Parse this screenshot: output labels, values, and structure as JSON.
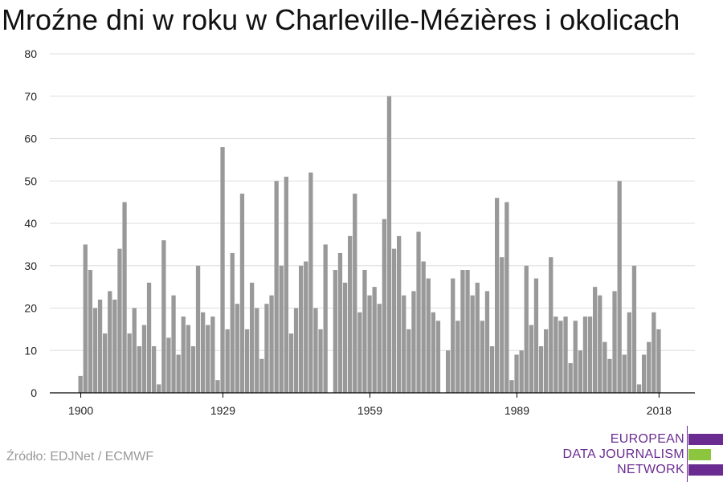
{
  "title": "Mroźne dni w roku w Charleville-Mézières i okolicach",
  "source": "Źródło: EDJNet / ECMWF",
  "logo": {
    "lines": [
      "EUROPEAN",
      "DATA JOURNALISM",
      "NETWORK"
    ],
    "colors": [
      "#6a2c91",
      "#8cc63f",
      "#6a2c91"
    ]
  },
  "colors": {
    "bar": "#999999",
    "grid": "#dddddd",
    "axis": "#000000",
    "text": "#222222"
  },
  "chart_data": {
    "type": "bar",
    "title": "Mroźne dni w roku w Charleville-Mézières i okolicach",
    "xlabel": "",
    "ylabel": "",
    "ylim": [
      0,
      80
    ],
    "yticks": [
      0,
      10,
      20,
      30,
      40,
      50,
      60,
      70,
      80
    ],
    "xticks": [
      1900,
      1929,
      1959,
      1989,
      2018
    ],
    "grid": true,
    "x": [
      1900,
      1901,
      1902,
      1903,
      1904,
      1905,
      1906,
      1907,
      1908,
      1909,
      1910,
      1911,
      1912,
      1913,
      1914,
      1915,
      1916,
      1917,
      1918,
      1919,
      1920,
      1921,
      1922,
      1923,
      1924,
      1925,
      1926,
      1927,
      1928,
      1929,
      1930,
      1931,
      1932,
      1933,
      1934,
      1935,
      1936,
      1937,
      1938,
      1939,
      1940,
      1941,
      1942,
      1943,
      1944,
      1945,
      1946,
      1947,
      1948,
      1949,
      1950,
      1951,
      1952,
      1953,
      1954,
      1955,
      1956,
      1957,
      1958,
      1959,
      1960,
      1961,
      1962,
      1963,
      1964,
      1965,
      1966,
      1967,
      1968,
      1969,
      1970,
      1971,
      1972,
      1973,
      1974,
      1975,
      1976,
      1977,
      1978,
      1979,
      1980,
      1981,
      1982,
      1983,
      1984,
      1985,
      1986,
      1987,
      1988,
      1989,
      1990,
      1991,
      1992,
      1993,
      1994,
      1995,
      1996,
      1997,
      1998,
      1999,
      2000,
      2001,
      2002,
      2003,
      2004,
      2005,
      2006,
      2007,
      2008,
      2009,
      2010,
      2011,
      2012,
      2013,
      2014,
      2015,
      2016,
      2017,
      2018
    ],
    "values": [
      4,
      35,
      29,
      20,
      22,
      14,
      24,
      22,
      34,
      45,
      14,
      20,
      11,
      16,
      26,
      11,
      2,
      36,
      13,
      23,
      9,
      18,
      16,
      11,
      30,
      19,
      16,
      18,
      3,
      58,
      15,
      33,
      21,
      47,
      15,
      26,
      20,
      8,
      21,
      23,
      50,
      30,
      51,
      14,
      20,
      30,
      31,
      52,
      20,
      15,
      35,
      0,
      29,
      33,
      26,
      37,
      47,
      19,
      29,
      23,
      25,
      21,
      41,
      70,
      34,
      37,
      23,
      15,
      24,
      38,
      31,
      27,
      19,
      17,
      0,
      10,
      27,
      17,
      29,
      29,
      23,
      26,
      17,
      24,
      11,
      46,
      32,
      45,
      3,
      9,
      10,
      30,
      16,
      27,
      11,
      15,
      32,
      18,
      17,
      18,
      7,
      17,
      10,
      18,
      18,
      25,
      23,
      12,
      8,
      24,
      50,
      9,
      19,
      30,
      2,
      9,
      12,
      19,
      15
    ]
  }
}
